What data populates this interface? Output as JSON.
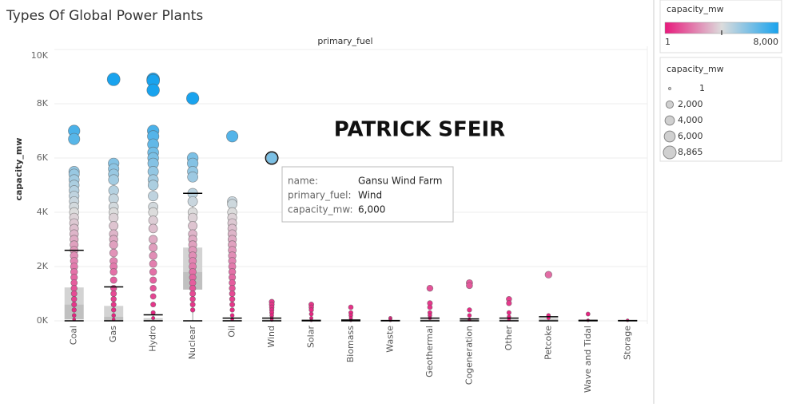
{
  "header": {
    "title": "Types Of Global Power Plants"
  },
  "watermark": "PATRICK SFEIR",
  "chart_data": {
    "type": "strip",
    "column_header": "primary_fuel",
    "y_label": "capacity_mw",
    "ylim": [
      0,
      10000
    ],
    "yticks": [
      {
        "value": 0,
        "label": "0K"
      },
      {
        "value": 2000,
        "label": "2K"
      },
      {
        "value": 4000,
        "label": "4K"
      },
      {
        "value": 6000,
        "label": "6K"
      },
      {
        "value": 8000,
        "label": "8K"
      },
      {
        "value": 10000,
        "label": "10K"
      }
    ],
    "grid": true,
    "categories": [
      "Coal",
      "Gas",
      "Hydro",
      "Nuclear",
      "Oil",
      "Wind",
      "Solar",
      "Biomass",
      "Waste",
      "Geothermal",
      "Cogeneration",
      "Other",
      "Petcoke",
      "Wave and Tidal",
      "Storage"
    ],
    "values": [
      [
        7000,
        6700,
        5500,
        5400,
        5200,
        5000,
        4800,
        4600,
        4400,
        4200,
        4000,
        3800,
        3600,
        3400,
        3200,
        3000,
        2800,
        2600,
        2400,
        2200,
        2000,
        1800,
        1600,
        1400,
        1200,
        1000,
        800,
        600,
        400,
        200,
        50
      ],
      [
        8900,
        5800,
        5600,
        5400,
        5200,
        4800,
        4500,
        4200,
        4000,
        3800,
        3500,
        3200,
        3000,
        2800,
        2500,
        2200,
        2000,
        1800,
        1500,
        1200,
        1000,
        800,
        600,
        400,
        200,
        50
      ],
      [
        8900,
        8850,
        8500,
        7000,
        6800,
        6500,
        6200,
        6000,
        5800,
        5500,
        5200,
        5000,
        4600,
        4200,
        4000,
        3700,
        3400,
        3000,
        2700,
        2400,
        2100,
        1800,
        1500,
        1200,
        900,
        600,
        300,
        100
      ],
      [
        8200,
        6000,
        5800,
        5500,
        5300,
        4700,
        4400,
        4000,
        3800,
        3500,
        3200,
        3000,
        2800,
        2600,
        2400,
        2200,
        2000,
        1800,
        1600,
        1400,
        1200,
        1000,
        800,
        600,
        400
      ],
      [
        6800,
        4400,
        4300,
        4000,
        3800,
        3600,
        3400,
        3200,
        3000,
        2800,
        2600,
        2400,
        2200,
        2000,
        1800,
        1600,
        1400,
        1200,
        1000,
        800,
        600,
        400,
        200,
        50
      ],
      [
        6000,
        700,
        600,
        500,
        400,
        300,
        200,
        100,
        30
      ],
      [
        600,
        500,
        400,
        250,
        100,
        20
      ],
      [
        500,
        300,
        200,
        100,
        20
      ],
      [
        100,
        60,
        20
      ],
      [
        1200,
        650,
        500,
        300,
        200,
        100
      ],
      [
        1400,
        1300,
        400,
        200,
        50
      ],
      [
        800,
        650,
        300,
        150,
        50
      ],
      [
        1700,
        200,
        100
      ],
      [
        250,
        20
      ],
      [
        20
      ]
    ],
    "boxes": [
      {
        "whisker_low": 0,
        "q1": 50,
        "median": 600,
        "q3": 1230,
        "whisker_high": 2600
      },
      {
        "whisker_low": 0,
        "q1": 0,
        "median": 150,
        "q3": 550,
        "whisker_high": 1250
      },
      {
        "whisker_low": 0,
        "q1": 0,
        "median": 30,
        "q3": 100,
        "whisker_high": 220
      },
      {
        "whisker_low": 0,
        "q1": 1150,
        "median": 1800,
        "q3": 2700,
        "whisker_high": 4700
      },
      {
        "whisker_low": 0,
        "q1": 0,
        "median": 10,
        "q3": 30,
        "whisker_high": 100
      },
      {
        "whisker_low": 0,
        "q1": 5,
        "median": 20,
        "q3": 50,
        "whisker_high": 100
      },
      {
        "whisker_low": 0,
        "q1": 0,
        "median": 2,
        "q3": 5,
        "whisker_high": 20
      },
      {
        "whisker_low": 0,
        "q1": 2,
        "median": 10,
        "q3": 20,
        "whisker_high": 30
      },
      {
        "whisker_low": 0,
        "q1": 1,
        "median": 3,
        "q3": 5,
        "whisker_high": 10
      },
      {
        "whisker_low": 0,
        "q1": 10,
        "median": 30,
        "q3": 60,
        "whisker_high": 100
      },
      {
        "whisker_low": 0,
        "q1": 5,
        "median": 20,
        "q3": 40,
        "whisker_high": 70
      },
      {
        "whisker_low": 0,
        "q1": 10,
        "median": 30,
        "q3": 60,
        "whisker_high": 100
      },
      {
        "whisker_low": 0,
        "q1": 20,
        "median": 60,
        "q3": 100,
        "whisker_high": 150
      },
      {
        "whisker_low": 0,
        "q1": 1,
        "median": 3,
        "q3": 5,
        "whisker_high": 20
      },
      {
        "whisker_low": 0,
        "q1": 1,
        "median": 2,
        "q3": 3,
        "whisker_high": 10
      }
    ],
    "colors": {
      "low": "#e8197c",
      "mid": "#dcdcdc",
      "high": "#19a3ee"
    },
    "color_legend": {
      "title": "capacity_mw",
      "range": [
        {
          "value": 1,
          "label": "1"
        },
        {
          "value": 8000,
          "label": "8,000"
        }
      ]
    },
    "size_legend": {
      "title": "capacity_mw",
      "entries": [
        {
          "value": 1,
          "label": "1"
        },
        {
          "value": 2000,
          "label": "2,000"
        },
        {
          "value": 4000,
          "label": "4,000"
        },
        {
          "value": 6000,
          "label": "6,000"
        },
        {
          "value": 8865,
          "label": "8,865"
        }
      ]
    },
    "tooltip": {
      "rows": [
        {
          "key": "name:",
          "value": "Gansu Wind Farm"
        },
        {
          "key": "primary_fuel:",
          "value": "Wind"
        },
        {
          "key": "capacity_mw:",
          "value": "6,000"
        }
      ]
    }
  }
}
